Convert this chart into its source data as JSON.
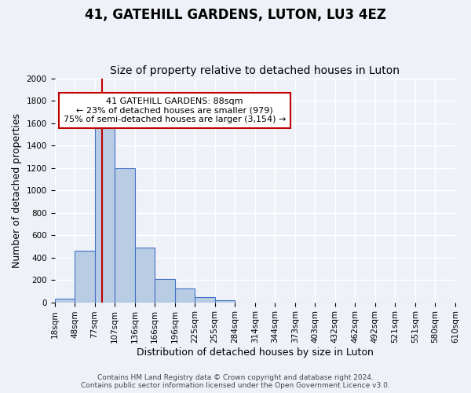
{
  "title": "41, GATEHILL GARDENS, LUTON, LU3 4EZ",
  "subtitle": "Size of property relative to detached houses in Luton",
  "xlabel": "Distribution of detached houses by size in Luton",
  "ylabel": "Number of detached properties",
  "bin_labels": [
    "18sqm",
    "48sqm",
    "77sqm",
    "107sqm",
    "136sqm",
    "166sqm",
    "196sqm",
    "225sqm",
    "255sqm",
    "284sqm",
    "314sqm",
    "344sqm",
    "373sqm",
    "403sqm",
    "432sqm",
    "462sqm",
    "492sqm",
    "521sqm",
    "551sqm",
    "580sqm",
    "610sqm"
  ],
  "bar_values": [
    35,
    460,
    1600,
    1200,
    490,
    210,
    120,
    45,
    20,
    0,
    0,
    0,
    0,
    0,
    0,
    0,
    0,
    0,
    0,
    0
  ],
  "bar_color": "#b8cce4",
  "bar_edge_color": "#4472c4",
  "vline_x": 2,
  "vline_color": "#c00000",
  "annotation_title": "41 GATEHILL GARDENS: 88sqm",
  "annotation_line1": "← 23% of detached houses are smaller (979)",
  "annotation_line2": "75% of semi-detached houses are larger (3,154) →",
  "annotation_box_edge_color": "#c00000",
  "ylim": [
    0,
    2000
  ],
  "yticks": [
    0,
    200,
    400,
    600,
    800,
    1000,
    1200,
    1400,
    1600,
    1800,
    2000
  ],
  "footer_line1": "Contains HM Land Registry data © Crown copyright and database right 2024.",
  "footer_line2": "Contains public sector information licensed under the Open Government Licence v3.0.",
  "background_color": "#eef2f8",
  "plot_bg_color": "#eef2f8",
  "grid_color": "#ffffff",
  "title_fontsize": 12,
  "subtitle_fontsize": 10,
  "axis_label_fontsize": 9,
  "tick_fontsize": 7.5,
  "annotation_fontsize": 8,
  "footer_fontsize": 6.5
}
